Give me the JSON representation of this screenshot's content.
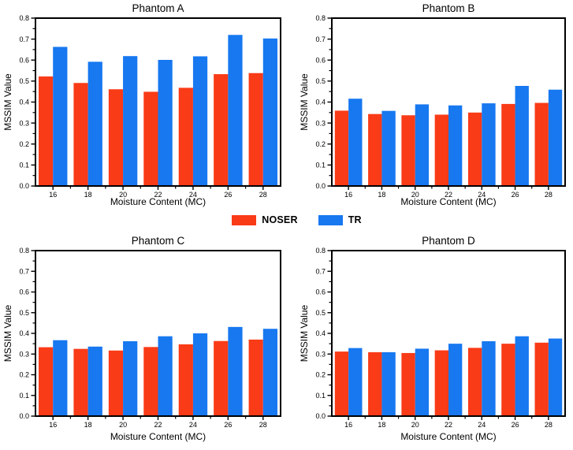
{
  "figure": {
    "ylabel_shared": "MSSIM Value",
    "xlabel_shared": "Moisture Content (MC)",
    "background": "#ffffff",
    "legend": {
      "position": "centered between top and bottom chart rows",
      "items": [
        {
          "label": "NOSER",
          "color": "#F93B17"
        },
        {
          "label": "TR",
          "color": "#1778F0"
        }
      ]
    }
  },
  "chart_data": [
    {
      "type": "bar",
      "title": "Phantom A",
      "xlabel": "Moisture Content (MC)",
      "ylabel": "MSSIM Value",
      "ylim": [
        0,
        0.8
      ],
      "ytick_interval": 0.1,
      "yminor_interval": 0.05,
      "grid": false,
      "categories": [
        "16",
        "18",
        "20",
        "22",
        "24",
        "26",
        "28"
      ],
      "series": [
        {
          "name": "NOSER",
          "color": "#F93B17",
          "values": [
            0.522,
            0.491,
            0.461,
            0.449,
            0.468,
            0.533,
            0.538
          ]
        },
        {
          "name": "TR",
          "color": "#1778F0",
          "values": [
            0.663,
            0.592,
            0.619,
            0.601,
            0.618,
            0.72,
            0.703
          ]
        }
      ]
    },
    {
      "type": "bar",
      "title": "Phantom B",
      "xlabel": "Moisture Content (MC)",
      "ylabel": "MSSIM Value",
      "ylim": [
        0,
        0.8
      ],
      "ytick_interval": 0.1,
      "yminor_interval": 0.05,
      "grid": false,
      "categories": [
        "16",
        "18",
        "20",
        "22",
        "24",
        "26",
        "28"
      ],
      "series": [
        {
          "name": "NOSER",
          "color": "#F93B17",
          "values": [
            0.359,
            0.343,
            0.337,
            0.34,
            0.35,
            0.391,
            0.396
          ]
        },
        {
          "name": "TR",
          "color": "#1778F0",
          "values": [
            0.416,
            0.358,
            0.389,
            0.384,
            0.394,
            0.477,
            0.459
          ]
        }
      ]
    },
    {
      "type": "bar",
      "title": "Phantom C",
      "xlabel": "Moisture Content (MC)",
      "ylabel": "MSSIM Value",
      "ylim": [
        0,
        0.8
      ],
      "ytick_interval": 0.1,
      "yminor_interval": 0.05,
      "grid": false,
      "categories": [
        "16",
        "18",
        "20",
        "22",
        "24",
        "26",
        "28"
      ],
      "series": [
        {
          "name": "NOSER",
          "color": "#F93B17",
          "values": [
            0.333,
            0.325,
            0.317,
            0.334,
            0.347,
            0.363,
            0.37
          ]
        },
        {
          "name": "TR",
          "color": "#1778F0",
          "values": [
            0.367,
            0.336,
            0.362,
            0.386,
            0.4,
            0.431,
            0.422
          ]
        }
      ]
    },
    {
      "type": "bar",
      "title": "Phantom D",
      "xlabel": "Moisture Content (MC)",
      "ylabel": "MSSIM Value",
      "ylim": [
        0,
        0.8
      ],
      "ytick_interval": 0.1,
      "yminor_interval": 0.05,
      "grid": false,
      "categories": [
        "16",
        "18",
        "20",
        "22",
        "24",
        "26",
        "28"
      ],
      "series": [
        {
          "name": "NOSER",
          "color": "#F93B17",
          "values": [
            0.312,
            0.309,
            0.305,
            0.318,
            0.33,
            0.35,
            0.355
          ]
        },
        {
          "name": "TR",
          "color": "#1778F0",
          "values": [
            0.329,
            0.309,
            0.326,
            0.35,
            0.362,
            0.386,
            0.375
          ]
        }
      ]
    }
  ]
}
